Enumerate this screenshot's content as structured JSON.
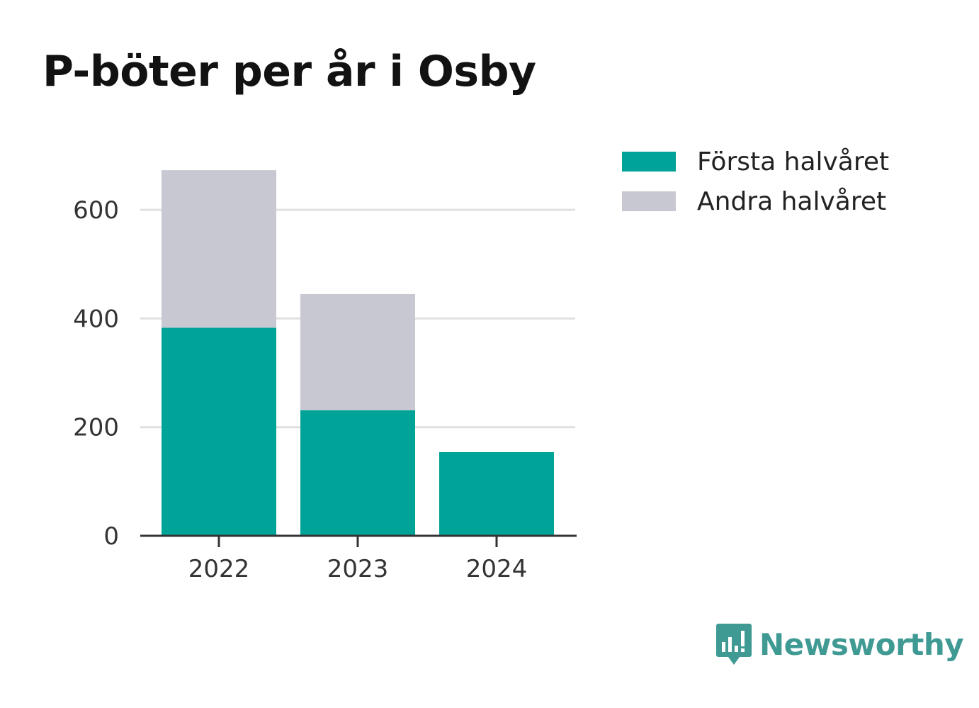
{
  "title": "P-böter per år i Osby",
  "colors": {
    "first_half": "#00a398",
    "second_half": "#c8c8d2",
    "grid": "#e0e0e0",
    "axis": "#333333",
    "brand": "#3f9a93"
  },
  "chart_data": {
    "type": "bar",
    "stacked": true,
    "title": "P-böter per år i Osby",
    "categories": [
      "2022",
      "2023",
      "2024"
    ],
    "series": [
      {
        "name": "Första halvåret",
        "values": [
          383,
          231,
          154
        ]
      },
      {
        "name": "Andra halvåret",
        "values": [
          290,
          214,
          0
        ]
      }
    ],
    "yticks": [
      0,
      200,
      400,
      600
    ],
    "ylim": [
      0,
      680
    ],
    "xlabel": "",
    "ylabel": "",
    "grid": true,
    "legend_position": "right"
  },
  "legend": {
    "items": [
      {
        "label": "Första halvåret",
        "color": "#00a398"
      },
      {
        "label": "Andra halvåret",
        "color": "#c8c8d2"
      }
    ]
  },
  "brand": {
    "name": "Newsworthy",
    "icon": "newsworthy-logo-icon"
  }
}
